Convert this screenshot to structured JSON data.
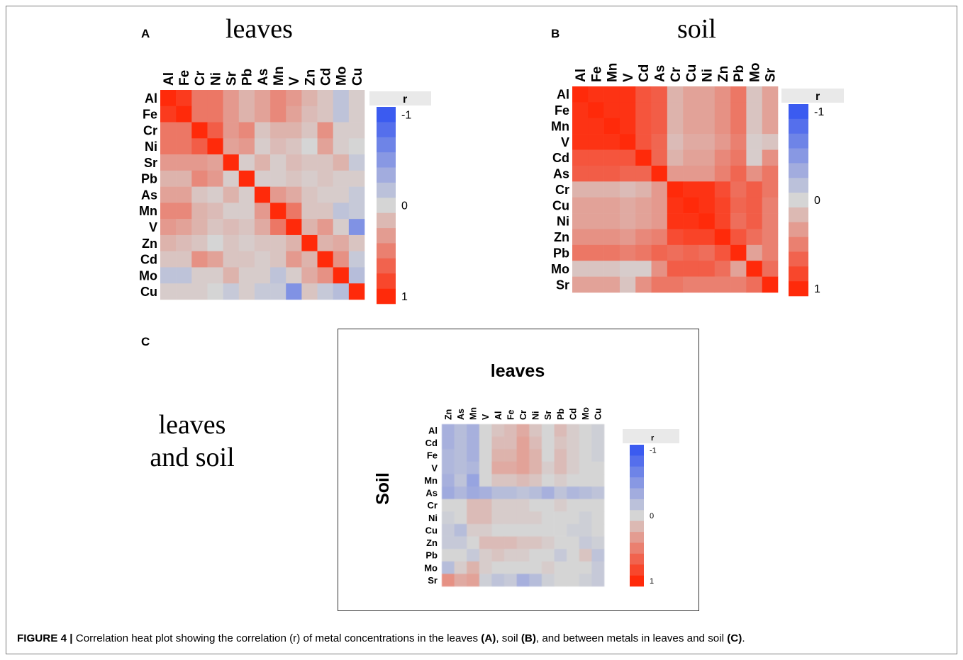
{
  "panels": {
    "a": {
      "letter": "A",
      "title": "leaves"
    },
    "b": {
      "letter": "B",
      "title": "soil"
    },
    "c": {
      "letter": "C",
      "side_title_line1": "leaves",
      "side_title_line2": "and soil",
      "top_title": "leaves",
      "side_label": "Soil"
    }
  },
  "legend": {
    "label": "r",
    "tick_min": "-1",
    "tick_mid": "0",
    "tick_max": "1",
    "color_neg": "#3b5bf0",
    "color_zero": "#d5d5d5",
    "color_pos": "#ff2a0a"
  },
  "caption": {
    "figure_label": "FIGURE 4 |",
    "text1": " Correlation heat plot showing the correlation (r) of metal concentrations in the leaves ",
    "ref_a": "(A)",
    "text2": ", soil ",
    "ref_b": "(B)",
    "text3": ", and between metals in leaves and soil ",
    "ref_c": "(C)",
    "text4": "."
  },
  "chart_data": [
    {
      "type": "heatmap",
      "panel": "A",
      "title": "leaves",
      "color_scale": {
        "min": -1,
        "max": 1,
        "legend_label": "r"
      },
      "x_labels": [
        "Al",
        "Fe",
        "Cr",
        "Ni",
        "Sr",
        "Pb",
        "As",
        "Mn",
        "V",
        "Zn",
        "Cd",
        "Mo",
        "Cu"
      ],
      "y_labels": [
        "Al",
        "Fe",
        "Cr",
        "Ni",
        "Sr",
        "Pb",
        "As",
        "Mn",
        "V",
        "Zn",
        "Cd",
        "Mo",
        "Cu"
      ],
      "values": [
        [
          1.0,
          0.9,
          0.55,
          0.55,
          0.35,
          0.2,
          0.3,
          0.45,
          0.35,
          0.2,
          0.1,
          -0.15,
          0.05
        ],
        [
          0.9,
          1.0,
          0.55,
          0.55,
          0.35,
          0.2,
          0.3,
          0.45,
          0.3,
          0.15,
          0.1,
          -0.15,
          0.05
        ],
        [
          0.55,
          0.55,
          1.0,
          0.7,
          0.35,
          0.45,
          0.1,
          0.2,
          0.2,
          0.1,
          0.4,
          0.05,
          0.05
        ],
        [
          0.55,
          0.55,
          0.7,
          1.0,
          0.3,
          0.35,
          0.05,
          0.15,
          0.1,
          0.0,
          0.3,
          0.05,
          0.0
        ],
        [
          0.35,
          0.35,
          0.35,
          0.3,
          1.0,
          0.05,
          0.2,
          0.05,
          0.15,
          0.1,
          0.1,
          0.2,
          -0.1
        ],
        [
          0.2,
          0.2,
          0.45,
          0.35,
          0.05,
          1.0,
          0.05,
          0.05,
          0.1,
          0.05,
          0.1,
          0.05,
          0.05
        ],
        [
          0.3,
          0.3,
          0.1,
          0.05,
          0.2,
          0.05,
          1.0,
          0.35,
          0.25,
          0.1,
          0.05,
          0.05,
          -0.1
        ],
        [
          0.45,
          0.45,
          0.2,
          0.15,
          0.05,
          0.05,
          0.35,
          1.0,
          0.55,
          0.1,
          0.1,
          -0.15,
          -0.1
        ],
        [
          0.35,
          0.3,
          0.2,
          0.1,
          0.15,
          0.1,
          0.25,
          0.55,
          1.0,
          0.2,
          0.35,
          0.05,
          -0.55
        ],
        [
          0.2,
          0.15,
          0.1,
          0.0,
          0.1,
          0.05,
          0.1,
          0.1,
          0.2,
          1.0,
          0.2,
          0.25,
          0.1
        ],
        [
          0.1,
          0.1,
          0.4,
          0.3,
          0.1,
          0.1,
          0.05,
          0.1,
          0.35,
          0.2,
          1.0,
          0.4,
          -0.1
        ],
        [
          -0.15,
          -0.15,
          0.05,
          0.05,
          0.2,
          0.05,
          0.05,
          -0.15,
          0.05,
          0.25,
          0.4,
          1.0,
          -0.2
        ],
        [
          0.05,
          0.05,
          0.05,
          0.0,
          -0.1,
          0.05,
          -0.1,
          -0.1,
          -0.55,
          0.1,
          -0.1,
          -0.2,
          1.0
        ]
      ]
    },
    {
      "type": "heatmap",
      "panel": "B",
      "title": "soil",
      "color_scale": {
        "min": -1,
        "max": 1,
        "legend_label": "r"
      },
      "x_labels": [
        "Al",
        "Fe",
        "Mn",
        "V",
        "Cd",
        "As",
        "Cr",
        "Cu",
        "Ni",
        "Zn",
        "Pb",
        "Mo",
        "Sr"
      ],
      "y_labels": [
        "Al",
        "Fe",
        "Mn",
        "V",
        "Cd",
        "As",
        "Cr",
        "Cu",
        "Ni",
        "Zn",
        "Pb",
        "Mo",
        "Sr"
      ],
      "values": [
        [
          1.0,
          0.95,
          0.95,
          0.95,
          0.75,
          0.7,
          0.2,
          0.3,
          0.3,
          0.4,
          0.55,
          0.1,
          0.3
        ],
        [
          0.95,
          1.0,
          0.95,
          0.95,
          0.75,
          0.7,
          0.2,
          0.3,
          0.3,
          0.4,
          0.55,
          0.1,
          0.3
        ],
        [
          0.95,
          0.95,
          1.0,
          0.95,
          0.75,
          0.7,
          0.2,
          0.3,
          0.3,
          0.4,
          0.55,
          0.1,
          0.3
        ],
        [
          0.95,
          0.95,
          0.95,
          1.0,
          0.75,
          0.65,
          0.15,
          0.25,
          0.25,
          0.35,
          0.5,
          0.05,
          0.1
        ],
        [
          0.75,
          0.75,
          0.75,
          0.75,
          1.0,
          0.65,
          0.2,
          0.3,
          0.3,
          0.45,
          0.55,
          0.05,
          0.4
        ],
        [
          0.7,
          0.7,
          0.7,
          0.65,
          0.65,
          1.0,
          0.35,
          0.35,
          0.35,
          0.5,
          0.65,
          0.4,
          0.55
        ],
        [
          0.2,
          0.2,
          0.2,
          0.15,
          0.2,
          0.35,
          1.0,
          0.95,
          0.95,
          0.8,
          0.6,
          0.7,
          0.55
        ],
        [
          0.3,
          0.3,
          0.3,
          0.25,
          0.3,
          0.35,
          0.95,
          1.0,
          0.95,
          0.85,
          0.65,
          0.7,
          0.5
        ],
        [
          0.3,
          0.3,
          0.3,
          0.25,
          0.3,
          0.35,
          0.95,
          0.95,
          1.0,
          0.85,
          0.6,
          0.7,
          0.5
        ],
        [
          0.4,
          0.4,
          0.4,
          0.35,
          0.45,
          0.5,
          0.8,
          0.85,
          0.85,
          1.0,
          0.75,
          0.6,
          0.5
        ],
        [
          0.55,
          0.55,
          0.55,
          0.5,
          0.55,
          0.65,
          0.6,
          0.65,
          0.6,
          0.75,
          1.0,
          0.3,
          0.5
        ],
        [
          0.1,
          0.1,
          0.1,
          0.05,
          0.05,
          0.4,
          0.7,
          0.7,
          0.7,
          0.6,
          0.3,
          1.0,
          0.6
        ],
        [
          0.3,
          0.3,
          0.3,
          0.1,
          0.4,
          0.55,
          0.55,
          0.5,
          0.5,
          0.5,
          0.5,
          0.6,
          1.0
        ]
      ]
    },
    {
      "type": "heatmap",
      "panel": "C",
      "title": "leaves",
      "ylabel": "Soil",
      "color_scale": {
        "min": -1,
        "max": 1,
        "legend_label": "r"
      },
      "x_labels": [
        "Zn",
        "As",
        "Mn",
        "V",
        "Al",
        "Fe",
        "Cr",
        "Ni",
        "Sr",
        "Pb",
        "Cd",
        "Mo",
        "Cu"
      ],
      "y_labels": [
        "Al",
        "Cd",
        "Fe",
        "V",
        "Mn",
        "As",
        "Cr",
        "Ni",
        "Cu",
        "Zn",
        "Pb",
        "Mo",
        "Sr"
      ],
      "values": [
        [
          -0.3,
          -0.2,
          -0.3,
          0.0,
          0.1,
          0.15,
          0.25,
          0.1,
          0.0,
          0.15,
          0.05,
          0.0,
          -0.05
        ],
        [
          -0.3,
          -0.2,
          -0.3,
          0.0,
          0.15,
          0.15,
          0.3,
          0.15,
          0.0,
          0.1,
          0.05,
          0.0,
          -0.05
        ],
        [
          -0.25,
          -0.2,
          -0.3,
          0.0,
          0.2,
          0.2,
          0.3,
          0.2,
          0.0,
          0.15,
          0.05,
          0.0,
          -0.05
        ],
        [
          -0.25,
          -0.2,
          -0.25,
          0.0,
          0.25,
          0.25,
          0.3,
          0.2,
          0.05,
          0.15,
          0.05,
          0.0,
          0.0
        ],
        [
          -0.3,
          -0.15,
          -0.4,
          0.0,
          0.1,
          0.1,
          0.15,
          0.1,
          0.0,
          0.05,
          0.0,
          0.0,
          0.0
        ],
        [
          -0.35,
          -0.25,
          -0.35,
          -0.3,
          -0.2,
          -0.2,
          -0.15,
          -0.2,
          -0.3,
          -0.15,
          -0.25,
          -0.2,
          -0.15
        ],
        [
          0.0,
          0.0,
          0.15,
          0.15,
          0.05,
          0.05,
          0.05,
          0.0,
          0.0,
          0.05,
          0.0,
          0.0,
          0.0
        ],
        [
          -0.05,
          0.0,
          0.15,
          0.15,
          0.05,
          0.05,
          0.05,
          0.05,
          0.0,
          0.0,
          0.0,
          -0.05,
          0.0
        ],
        [
          -0.1,
          -0.2,
          0.05,
          0.05,
          0.0,
          0.0,
          0.0,
          0.0,
          0.0,
          0.0,
          -0.05,
          -0.05,
          0.0
        ],
        [
          -0.1,
          -0.1,
          0.0,
          0.15,
          0.15,
          0.15,
          0.1,
          0.1,
          0.05,
          0.0,
          0.0,
          -0.1,
          -0.05
        ],
        [
          0.0,
          0.0,
          -0.1,
          0.05,
          0.1,
          0.05,
          0.05,
          0.0,
          0.0,
          -0.1,
          0.0,
          0.1,
          -0.15
        ],
        [
          -0.2,
          0.05,
          0.2,
          0.05,
          0.0,
          0.0,
          0.0,
          0.0,
          0.05,
          0.0,
          0.0,
          0.0,
          -0.1
        ],
        [
          0.4,
          0.25,
          0.3,
          -0.05,
          -0.15,
          -0.1,
          -0.3,
          -0.2,
          -0.05,
          0.0,
          0.0,
          -0.05,
          -0.1
        ]
      ]
    }
  ]
}
